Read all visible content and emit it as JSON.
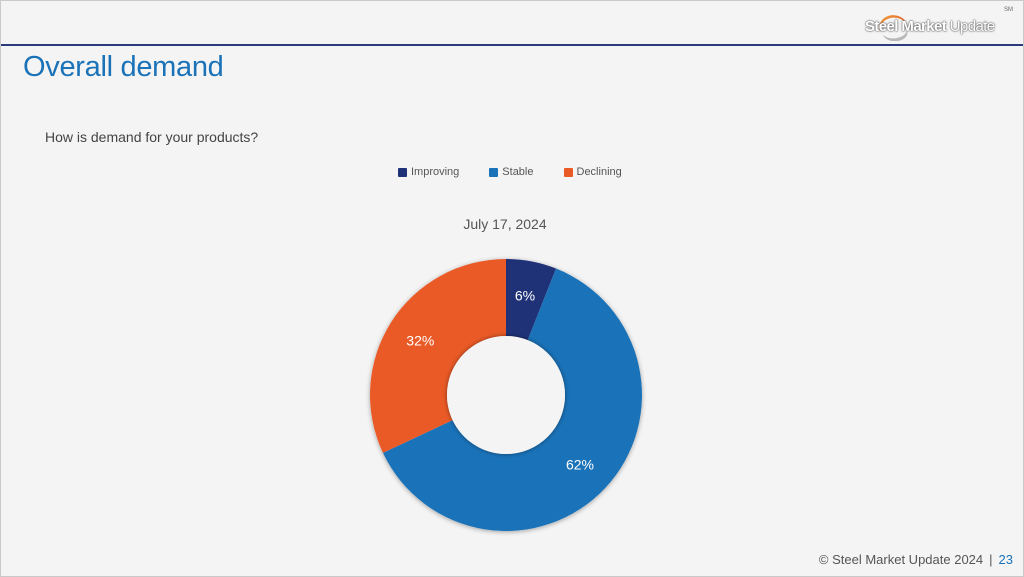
{
  "header": {
    "logo_text_bold": "Steel Market",
    "logo_text_light": "Update",
    "logo_mark": "SM"
  },
  "slide": {
    "title": "Overall demand",
    "question": "How is demand for your products?"
  },
  "chart_data": {
    "type": "pie",
    "donut": true,
    "subtitle": "July 17, 2024",
    "categories": [
      "Improving",
      "Stable",
      "Declining"
    ],
    "values": [
      6,
      62,
      32
    ],
    "data_labels": [
      "6%",
      "62%",
      "32%"
    ],
    "colors": [
      "#1f3278",
      "#1a72b8",
      "#ea5a27"
    ],
    "legend_position": "top-center",
    "start_angle_deg": 0,
    "direction": "clockwise"
  },
  "footer": {
    "copyright": "© Steel Market Update 2024",
    "separator": "|",
    "page_number": "23"
  }
}
